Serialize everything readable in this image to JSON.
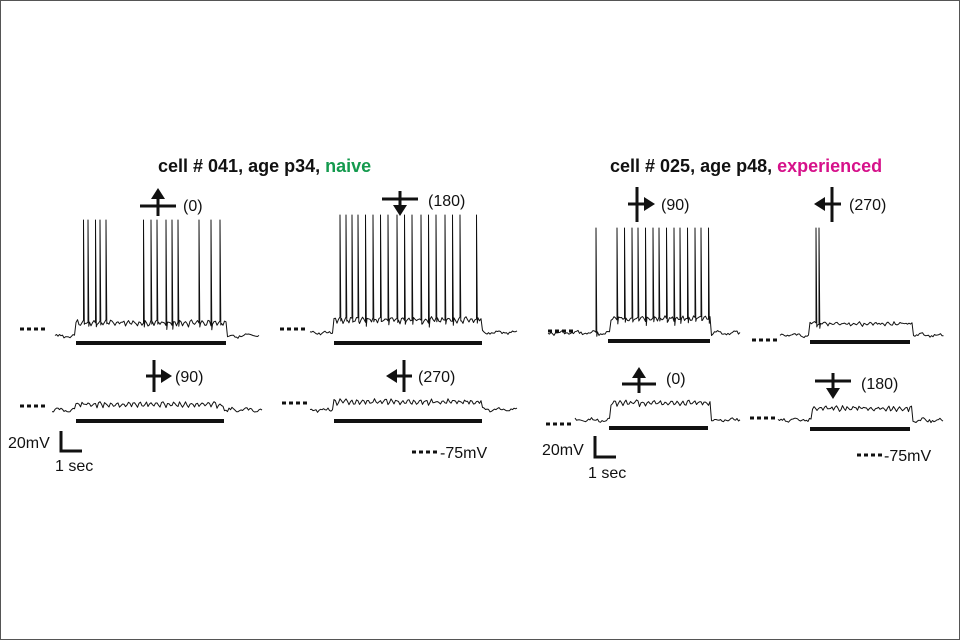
{
  "colors": {
    "naive": "#149a4e",
    "experienced": "#d6118a",
    "ink": "#111111",
    "frame": "#555555"
  },
  "left_panel": {
    "title_prefix": "cell # 041, age p34, ",
    "title_condition": "naive",
    "traces": [
      {
        "direction_label": "(0)",
        "arrow_icon": "arrow-up-icon",
        "spiking": true
      },
      {
        "direction_label": "(180)",
        "arrow_icon": "arrow-down-icon",
        "spiking": true
      },
      {
        "direction_label": "(90)",
        "arrow_icon": "arrow-right-icon",
        "spiking": false
      },
      {
        "direction_label": "(270)",
        "arrow_icon": "arrow-left-icon",
        "spiking": false
      }
    ],
    "scale_v": "20mV",
    "scale_t": "1 sec",
    "resting_label": "-75mV"
  },
  "right_panel": {
    "title_prefix": "cell # 025, age p48, ",
    "title_condition": "experienced",
    "traces": [
      {
        "direction_label": "(90)",
        "arrow_icon": "arrow-right-icon",
        "spiking": true
      },
      {
        "direction_label": "(270)",
        "arrow_icon": "arrow-left-icon",
        "spiking": true
      },
      {
        "direction_label": "(0)",
        "arrow_icon": "arrow-up-icon",
        "spiking": false
      },
      {
        "direction_label": "(180)",
        "arrow_icon": "arrow-down-icon",
        "spiking": false
      }
    ],
    "scale_v": "20mV",
    "scale_t": "1 sec",
    "resting_label": "-75mV"
  }
}
